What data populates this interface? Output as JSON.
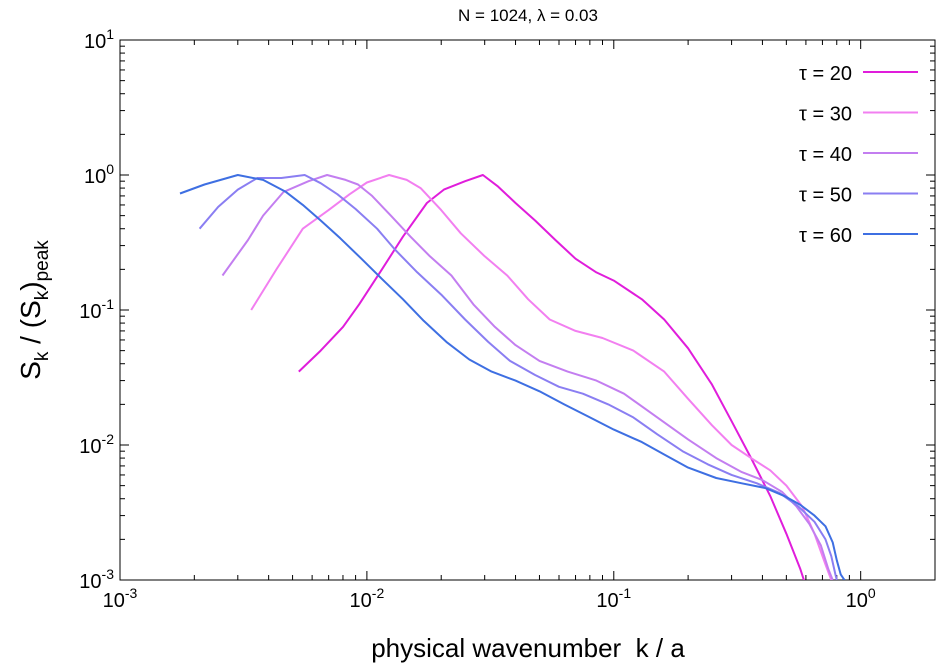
{
  "chart_data": {
    "type": "line",
    "title": "N = 1024, λ = 0.03",
    "xlabel": "physical wavenumber  k / a",
    "ylabel": {
      "main": "S",
      "sub1": "k",
      "mid": " / (S",
      "sub2": "k",
      "close": ")",
      "sub3": "peak"
    },
    "x_scale": "log",
    "y_scale": "log",
    "xlim": [
      0.001,
      2.0
    ],
    "ylim": [
      0.001,
      10
    ],
    "x_ticks": [
      {
        "value": 0.001,
        "base": "10",
        "exp": "-3"
      },
      {
        "value": 0.01,
        "base": "10",
        "exp": "-2"
      },
      {
        "value": 0.1,
        "base": "10",
        "exp": "-1"
      },
      {
        "value": 1,
        "base": "10",
        "exp": "0"
      }
    ],
    "y_ticks": [
      {
        "value": 0.001,
        "base": "10",
        "exp": "-3"
      },
      {
        "value": 0.01,
        "base": "10",
        "exp": "-2"
      },
      {
        "value": 0.1,
        "base": "10",
        "exp": "-1"
      },
      {
        "value": 1,
        "base": "10",
        "exp": "0"
      },
      {
        "value": 10,
        "base": "10",
        "exp": "1"
      }
    ],
    "grid": false,
    "legend_position": "top-right",
    "series": [
      {
        "name": "τ = 20",
        "color": "#e01ddb",
        "points": [
          [
            0.0053,
            0.035
          ],
          [
            0.0065,
            0.05
          ],
          [
            0.008,
            0.075
          ],
          [
            0.0093,
            0.11
          ],
          [
            0.0115,
            0.2
          ],
          [
            0.014,
            0.35
          ],
          [
            0.0175,
            0.62
          ],
          [
            0.0205,
            0.78
          ],
          [
            0.025,
            0.9
          ],
          [
            0.0295,
            1.0
          ],
          [
            0.034,
            0.82
          ],
          [
            0.04,
            0.62
          ],
          [
            0.048,
            0.46
          ],
          [
            0.058,
            0.33
          ],
          [
            0.07,
            0.24
          ],
          [
            0.085,
            0.19
          ],
          [
            0.1,
            0.165
          ],
          [
            0.13,
            0.12
          ],
          [
            0.16,
            0.085
          ],
          [
            0.2,
            0.052
          ],
          [
            0.25,
            0.028
          ],
          [
            0.3,
            0.015
          ],
          [
            0.36,
            0.008
          ],
          [
            0.43,
            0.0042
          ],
          [
            0.5,
            0.0022
          ],
          [
            0.57,
            0.0012
          ],
          [
            0.6,
            0.0009
          ]
        ]
      },
      {
        "name": "τ = 30",
        "color": "#f27ff0",
        "points": [
          [
            0.0034,
            0.1
          ],
          [
            0.0043,
            0.2
          ],
          [
            0.0055,
            0.4
          ],
          [
            0.007,
            0.55
          ],
          [
            0.0085,
            0.72
          ],
          [
            0.01,
            0.88
          ],
          [
            0.0123,
            1.0
          ],
          [
            0.0145,
            0.92
          ],
          [
            0.0165,
            0.8
          ],
          [
            0.02,
            0.55
          ],
          [
            0.024,
            0.37
          ],
          [
            0.03,
            0.25
          ],
          [
            0.037,
            0.18
          ],
          [
            0.045,
            0.12
          ],
          [
            0.055,
            0.085
          ],
          [
            0.07,
            0.07
          ],
          [
            0.09,
            0.062
          ],
          [
            0.12,
            0.05
          ],
          [
            0.16,
            0.035
          ],
          [
            0.2,
            0.022
          ],
          [
            0.25,
            0.014
          ],
          [
            0.3,
            0.01
          ],
          [
            0.36,
            0.008
          ],
          [
            0.43,
            0.0065
          ],
          [
            0.5,
            0.005
          ],
          [
            0.58,
            0.0035
          ],
          [
            0.65,
            0.0022
          ],
          [
            0.72,
            0.0013
          ],
          [
            0.76,
            0.001
          ]
        ]
      },
      {
        "name": "τ = 40",
        "color": "#c37ef0",
        "points": [
          [
            0.0026,
            0.18
          ],
          [
            0.0033,
            0.33
          ],
          [
            0.0038,
            0.5
          ],
          [
            0.0046,
            0.75
          ],
          [
            0.0058,
            0.9
          ],
          [
            0.0069,
            1.0
          ],
          [
            0.0082,
            0.92
          ],
          [
            0.0092,
            0.85
          ],
          [
            0.0105,
            0.7
          ],
          [
            0.0125,
            0.5
          ],
          [
            0.015,
            0.35
          ],
          [
            0.018,
            0.25
          ],
          [
            0.022,
            0.18
          ],
          [
            0.027,
            0.11
          ],
          [
            0.033,
            0.075
          ],
          [
            0.04,
            0.055
          ],
          [
            0.05,
            0.042
          ],
          [
            0.065,
            0.035
          ],
          [
            0.085,
            0.03
          ],
          [
            0.11,
            0.024
          ],
          [
            0.15,
            0.016
          ],
          [
            0.2,
            0.011
          ],
          [
            0.26,
            0.008
          ],
          [
            0.33,
            0.0063
          ],
          [
            0.4,
            0.0055
          ],
          [
            0.48,
            0.0045
          ],
          [
            0.55,
            0.0035
          ],
          [
            0.62,
            0.0026
          ],
          [
            0.69,
            0.0018
          ],
          [
            0.74,
            0.0012
          ],
          [
            0.77,
            0.001
          ]
        ]
      },
      {
        "name": "τ = 50",
        "color": "#8a7ef2",
        "points": [
          [
            0.0021,
            0.4
          ],
          [
            0.0025,
            0.58
          ],
          [
            0.003,
            0.78
          ],
          [
            0.0036,
            0.95
          ],
          [
            0.0045,
            0.95
          ],
          [
            0.0056,
            1.0
          ],
          [
            0.0065,
            0.87
          ],
          [
            0.0076,
            0.72
          ],
          [
            0.009,
            0.56
          ],
          [
            0.011,
            0.4
          ],
          [
            0.013,
            0.28
          ],
          [
            0.016,
            0.19
          ],
          [
            0.02,
            0.13
          ],
          [
            0.025,
            0.085
          ],
          [
            0.031,
            0.058
          ],
          [
            0.038,
            0.042
          ],
          [
            0.048,
            0.033
          ],
          [
            0.06,
            0.027
          ],
          [
            0.075,
            0.024
          ],
          [
            0.095,
            0.02
          ],
          [
            0.12,
            0.016
          ],
          [
            0.15,
            0.012
          ],
          [
            0.19,
            0.009
          ],
          [
            0.24,
            0.0072
          ],
          [
            0.3,
            0.006
          ],
          [
            0.38,
            0.0052
          ],
          [
            0.47,
            0.0044
          ],
          [
            0.56,
            0.0035
          ],
          [
            0.65,
            0.0027
          ],
          [
            0.72,
            0.002
          ],
          [
            0.76,
            0.0015
          ],
          [
            0.79,
            0.0011
          ],
          [
            0.8,
            0.001
          ]
        ]
      },
      {
        "name": "τ = 60",
        "color": "#3e6fe2",
        "points": [
          [
            0.00175,
            0.73
          ],
          [
            0.0022,
            0.85
          ],
          [
            0.003,
            1.0
          ],
          [
            0.0038,
            0.92
          ],
          [
            0.0047,
            0.75
          ],
          [
            0.0055,
            0.6
          ],
          [
            0.0065,
            0.46
          ],
          [
            0.0078,
            0.34
          ],
          [
            0.0095,
            0.24
          ],
          [
            0.0115,
            0.17
          ],
          [
            0.014,
            0.12
          ],
          [
            0.017,
            0.083
          ],
          [
            0.021,
            0.058
          ],
          [
            0.026,
            0.043
          ],
          [
            0.032,
            0.035
          ],
          [
            0.04,
            0.03
          ],
          [
            0.05,
            0.025
          ],
          [
            0.063,
            0.02
          ],
          [
            0.08,
            0.016
          ],
          [
            0.1,
            0.013
          ],
          [
            0.13,
            0.0105
          ],
          [
            0.16,
            0.0085
          ],
          [
            0.2,
            0.0068
          ],
          [
            0.26,
            0.0057
          ],
          [
            0.33,
            0.0052
          ],
          [
            0.41,
            0.0048
          ],
          [
            0.49,
            0.0042
          ],
          [
            0.57,
            0.0036
          ],
          [
            0.65,
            0.003
          ],
          [
            0.72,
            0.0025
          ],
          [
            0.77,
            0.0019
          ],
          [
            0.8,
            0.0014
          ],
          [
            0.83,
            0.0011
          ],
          [
            0.86,
            0.001
          ]
        ]
      }
    ]
  }
}
